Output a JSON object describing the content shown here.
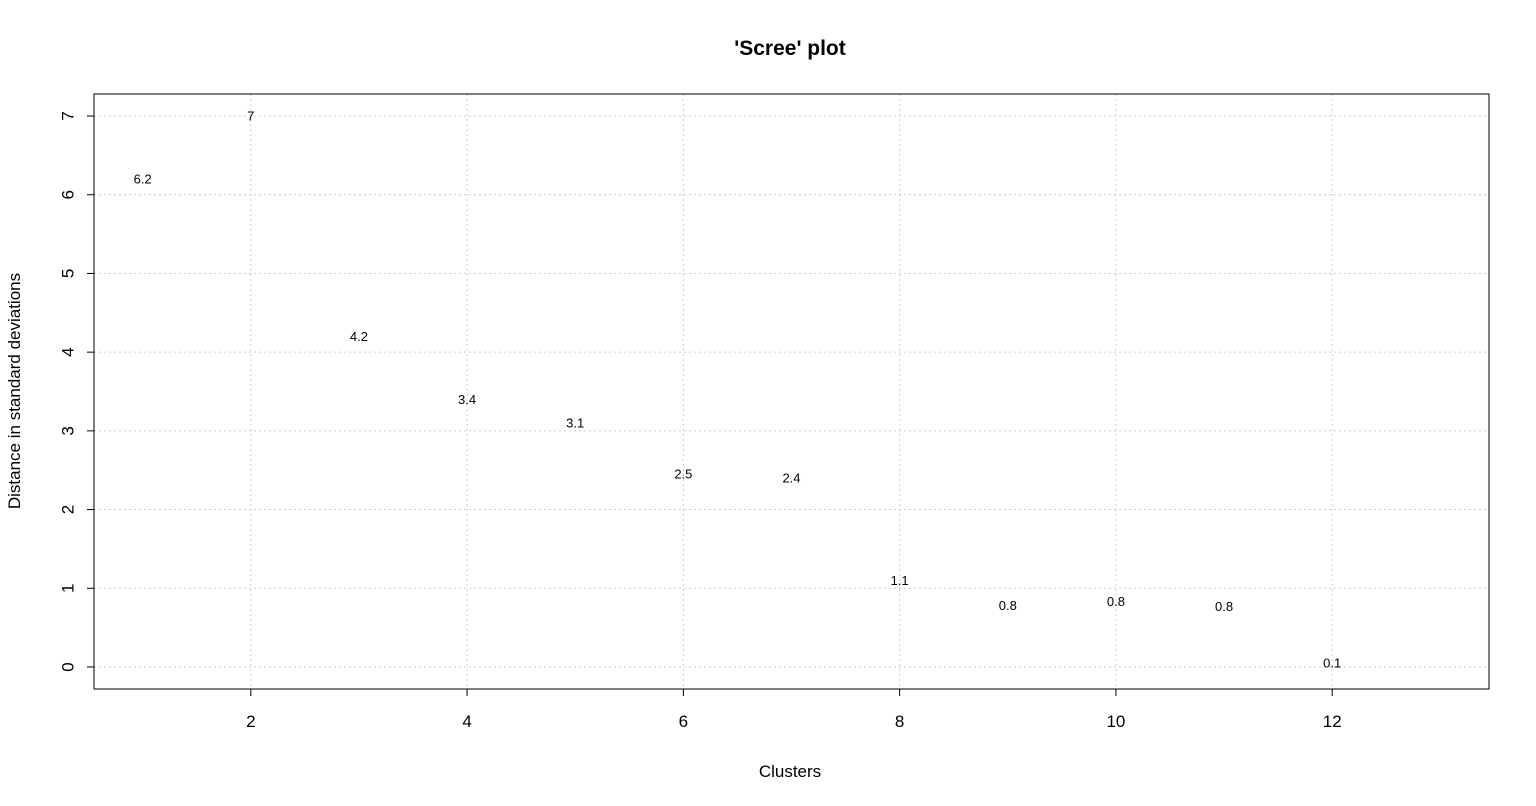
{
  "chart_data": {
    "type": "scatter",
    "title": "'Scree' plot",
    "xlabel": "Clusters",
    "ylabel": "Distance in standard deviations",
    "xlim": [
      0.55,
      13.45
    ],
    "ylim": [
      -0.28,
      7.28
    ],
    "xticks": [
      2,
      4,
      6,
      8,
      10,
      12
    ],
    "yticks": [
      0,
      1,
      2,
      3,
      4,
      5,
      6,
      7
    ],
    "grid": true,
    "points": [
      {
        "x": 1,
        "y": 6.2,
        "label": "6.2"
      },
      {
        "x": 2,
        "y": 7.0,
        "label": "7"
      },
      {
        "x": 3,
        "y": 4.2,
        "label": "4.2"
      },
      {
        "x": 4,
        "y": 3.4,
        "label": "3.4"
      },
      {
        "x": 5,
        "y": 3.1,
        "label": "3.1"
      },
      {
        "x": 6,
        "y": 2.45,
        "label": "2.5"
      },
      {
        "x": 7,
        "y": 2.4,
        "label": "2.4"
      },
      {
        "x": 8,
        "y": 1.1,
        "label": "1.1"
      },
      {
        "x": 9,
        "y": 0.78,
        "label": "0.8"
      },
      {
        "x": 10,
        "y": 0.83,
        "label": "0.8"
      },
      {
        "x": 11,
        "y": 0.77,
        "label": "0.8"
      },
      {
        "x": 12,
        "y": 0.05,
        "label": "0.1"
      }
    ]
  }
}
